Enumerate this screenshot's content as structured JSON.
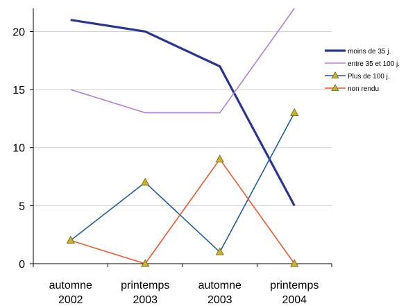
{
  "chart_data": {
    "type": "line",
    "categories": [
      [
        "automne",
        "2002"
      ],
      [
        "printemps",
        "2003"
      ],
      [
        "automne",
        "2003"
      ],
      [
        "printemps",
        "2004"
      ]
    ],
    "ylim": [
      0,
      22
    ],
    "yticks": [
      0,
      5,
      10,
      15,
      20
    ],
    "grid": true,
    "legend_position": "right",
    "series": [
      {
        "name": "moins de 35 j.",
        "values": [
          21,
          20,
          17,
          5
        ],
        "color": "#283593",
        "marker": "none",
        "emphasis": "thick"
      },
      {
        "name": "entre 35 et 100 j.",
        "values": [
          15,
          13,
          13,
          22
        ],
        "color": "#B27DD6",
        "marker": "none",
        "emphasis": "normal"
      },
      {
        "name": "Plus de 100 j.",
        "values": [
          2,
          7,
          1,
          13
        ],
        "color": "#1F5AA6",
        "marker": "triangle",
        "emphasis": "normal"
      },
      {
        "name": "non rendu",
        "values": [
          2,
          0,
          9,
          0
        ],
        "color": "#F2552C",
        "marker": "triangle",
        "emphasis": "normal"
      }
    ],
    "marker_fill": "#C9B52B",
    "marker_stroke": "#6E5E10"
  }
}
